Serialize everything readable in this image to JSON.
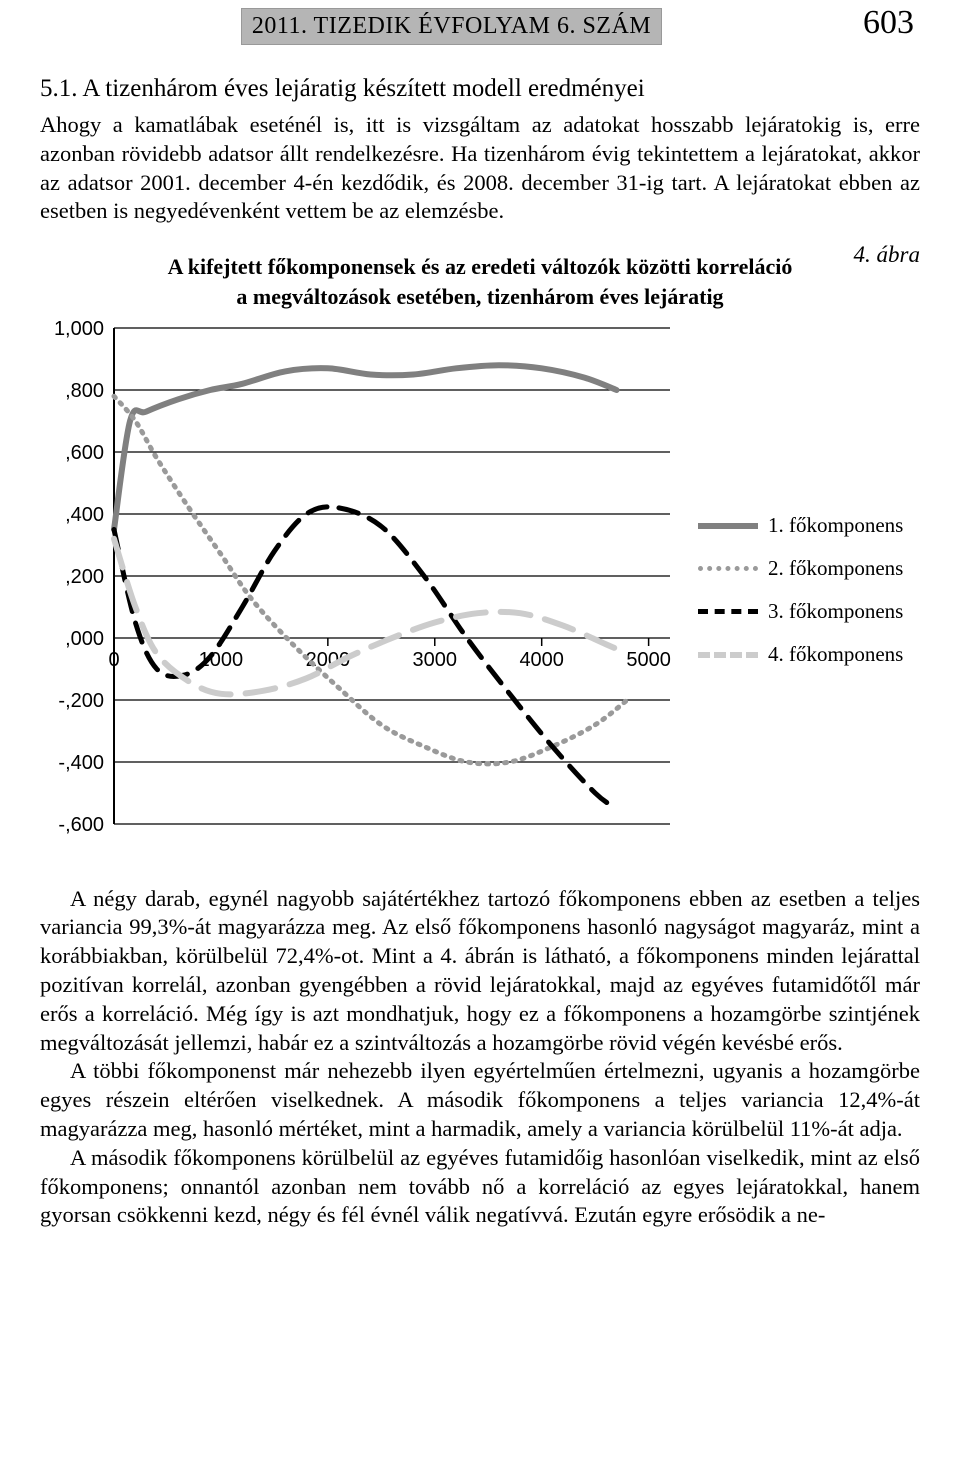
{
  "header": {
    "band": "2011. TIZEDIK ÉVFOLYAM 6. SZÁM",
    "page_number": "603"
  },
  "section_title": "5.1. A tizenhárom éves lejáratig készített modell eredményei",
  "para1": "Ahogy a kamatlábak eseténél is, itt is vizsgáltam az adatokat hosszabb lejáratokig is, erre azonban rövidebb adatsor állt rendelkezésre. Ha tizenhárom évig tekintettem a lejáratokat, akkor az adatsor 2001. december 4-én kezdődik, és 2008. december 31-ig tart. A lejáratokat ebben az esetben is negyedévenként vettem be az elemzésbe.",
  "figure": {
    "label": "4. ábra",
    "title_line1": "A kifejtett főkomponensek és az eredeti változók közötti korreláció",
    "title_line2": "a megváltozások esetében, tizenhárom éves lejáratig",
    "legend": {
      "s1": "1. főkomponens",
      "s2": "2. főkomponens",
      "s3": "3. főkomponens",
      "s4": "4. főkomponens"
    },
    "chart": {
      "type": "line",
      "x_ticks": [
        0,
        1000,
        2000,
        3000,
        4000,
        5000
      ],
      "x_tick_labels": [
        "0",
        "1000",
        "2000",
        "3000",
        "4000",
        "5000"
      ],
      "y_ticks": [
        -0.6,
        -0.4,
        -0.2,
        0.0,
        0.2,
        0.4,
        0.6,
        0.8,
        1.0
      ],
      "y_tick_labels": [
        "-,600",
        "-,400",
        "-,200",
        ",000",
        ",200",
        ",400",
        ",600",
        ",800",
        "1,000"
      ],
      "xlim": [
        0,
        5200
      ],
      "ylim": [
        -0.6,
        1.0
      ],
      "background_color": "#ffffff",
      "grid_color": "#000000",
      "axis_color": "#000000",
      "axis_line_width": 2,
      "grid_line_width": 1.2,
      "series": [
        {
          "name": "s1",
          "color": "#808080",
          "width": 6,
          "dash": "none",
          "x": [
            0,
            150,
            300,
            600,
            900,
            1200,
            1600,
            2000,
            2400,
            2800,
            3200,
            3600,
            4000,
            4400,
            4700
          ],
          "y": [
            0.35,
            0.7,
            0.73,
            0.77,
            0.8,
            0.82,
            0.86,
            0.87,
            0.85,
            0.85,
            0.87,
            0.88,
            0.87,
            0.84,
            0.8
          ]
        },
        {
          "name": "s2",
          "color": "#9a9a9a",
          "width": 5,
          "dash": "2 7",
          "x": [
            0,
            200,
            400,
            700,
            1000,
            1300,
            1700,
            2100,
            2500,
            2900,
            3300,
            3700,
            4100,
            4500,
            4800
          ],
          "y": [
            0.78,
            0.7,
            0.58,
            0.42,
            0.27,
            0.12,
            -0.03,
            -0.16,
            -0.28,
            -0.35,
            -0.4,
            -0.4,
            -0.35,
            -0.28,
            -0.2
          ]
        },
        {
          "name": "s3",
          "color": "#000000",
          "width": 5,
          "dash": "20 12",
          "x": [
            0,
            200,
            400,
            650,
            900,
            1200,
            1500,
            1800,
            2100,
            2500,
            2900,
            3300,
            3700,
            4100,
            4500,
            4700
          ],
          "y": [
            0.35,
            0.05,
            -0.1,
            -0.12,
            -0.06,
            0.1,
            0.28,
            0.4,
            0.42,
            0.36,
            0.2,
            0.0,
            -0.18,
            -0.35,
            -0.5,
            -0.55
          ]
        },
        {
          "name": "s4",
          "color": "#cccccc",
          "width": 6,
          "dash": "30 15",
          "x": [
            0,
            200,
            400,
            700,
            1000,
            1400,
            1800,
            2200,
            2600,
            3000,
            3400,
            3800,
            4200,
            4600,
            4800
          ],
          "y": [
            0.32,
            0.1,
            -0.05,
            -0.14,
            -0.18,
            -0.17,
            -0.13,
            -0.06,
            0.0,
            0.05,
            0.08,
            0.08,
            0.04,
            -0.02,
            -0.05
          ]
        }
      ]
    }
  },
  "para2": "A négy darab, egynél nagyobb sajátértékhez tartozó főkomponens ebben az esetben a teljes variancia 99,3%-át magyarázza meg. Az első főkomponens hasonló nagyságot magyaráz, mint a korábbiakban, körülbelül 72,4%-ot. Mint a 4. ábrán is látható, a főkomponens minden lejárattal pozitívan korrelál, azonban gyengébben a rövid lejáratokkal, majd az egyéves futamidőtől már erős a korreláció. Még így is azt mondhatjuk, hogy ez a főkomponens a hozamgörbe szintjének megváltozását jellemzi, habár ez a szintváltozás a hozamgörbe rövid végén kevésbé erős.",
  "para3": "A többi főkomponenst már nehezebb ilyen egyértelműen értelmezni, ugyanis a hozamgörbe egyes részein eltérően viselkednek. A második főkomponens a teljes variancia 12,4%-át magyarázza meg, hasonló mértéket, mint a harmadik, amely a variancia körülbelül 11%-át adja.",
  "para4": "A második főkomponens körülbelül az egyéves futamidőig hasonlóan viselkedik, mint az első főkomponens; onnantól azonban nem tovább nő a korreláció az egyes lejáratokkal, hanem gyorsan csökkenni kezd, négy és fél évnél válik negatívvá. Ezután egyre erősödik a ne-"
}
